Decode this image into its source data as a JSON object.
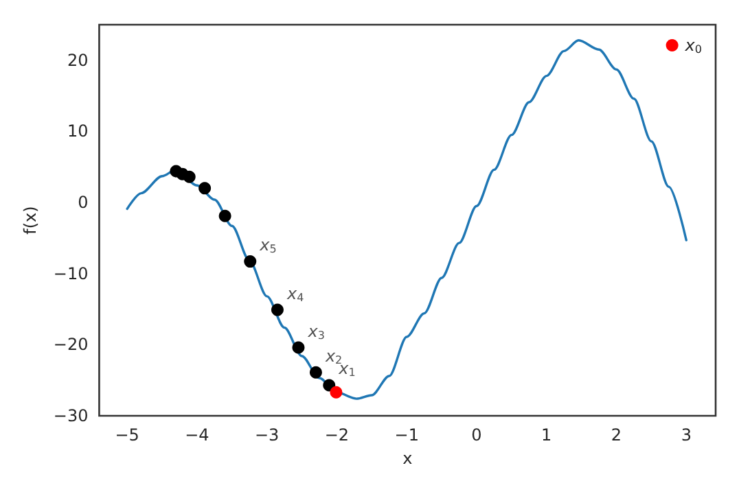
{
  "chart_data": {
    "type": "line",
    "xlabel": "x",
    "ylabel": "f(x)",
    "xlim": [
      -5.4,
      3.42
    ],
    "ylim": [
      -30,
      25
    ],
    "xticks": [
      -5,
      -4,
      -3,
      -2,
      -1,
      0,
      1,
      2,
      3
    ],
    "yticks": [
      -30,
      -20,
      -10,
      0,
      10,
      20
    ],
    "grid": false,
    "legend": "top right",
    "marker": "none",
    "line_style": "solid",
    "series": [
      {
        "color": "#1f77b4",
        "x": [
          -5,
          -4.8,
          -4.5,
          -4.3,
          -4,
          -3.75,
          -3.5,
          -3.25,
          -3,
          -2.75,
          -2.5,
          -2.25,
          -2,
          -1.72,
          -1.5,
          -1.25,
          -1,
          -0.75,
          -0.5,
          -0.25,
          0,
          0.25,
          0.5,
          0.75,
          1,
          1.25,
          1.46,
          1.75,
          2,
          2.25,
          2.5,
          2.75,
          3
        ],
        "values": [
          -0.9,
          1.3,
          3.7,
          4.6,
          2.4,
          0.4,
          -3.3,
          -8.2,
          -13.2,
          -17.6,
          -21.6,
          -24.7,
          -26.7,
          -27.6,
          -27.1,
          -24.4,
          -18.9,
          -15.6,
          -10.6,
          -5.7,
          -0.5,
          4.6,
          9.5,
          14.1,
          17.8,
          21.3,
          22.8,
          21.5,
          18.7,
          14.6,
          8.6,
          2.2,
          -5.3
        ]
      },
      {
        "type": "scatter",
        "color": "#000000",
        "marker": "circle",
        "x": [
          -4.3,
          -4.21,
          -4.11,
          -3.89,
          -3.6,
          -3.24,
          -2.85,
          -2.55,
          -2.3,
          -2.11
        ],
        "values": [
          4.4,
          4.0,
          3.6,
          2.0,
          -1.9,
          -8.3,
          -15.1,
          -20.4,
          -23.9,
          -25.7
        ]
      },
      {
        "type": "scatter",
        "name": "x$_{0}$",
        "color": "#ff0000",
        "marker": "circle",
        "x": [
          -2.01
        ],
        "values": [
          -26.7
        ]
      }
    ],
    "annotations": [
      {
        "text": "x$_{1}$",
        "x": -2.11,
        "y": -25.7
      },
      {
        "text": "x$_{2}$",
        "x": -2.3,
        "y": -23.9
      },
      {
        "text": "x$_{3}$",
        "x": -2.55,
        "y": -20.4
      },
      {
        "text": "x$_{4}$",
        "x": -2.85,
        "y": -15.1
      },
      {
        "text": "x$_{5}$",
        "x": -3.24,
        "y": -8.3
      }
    ]
  }
}
